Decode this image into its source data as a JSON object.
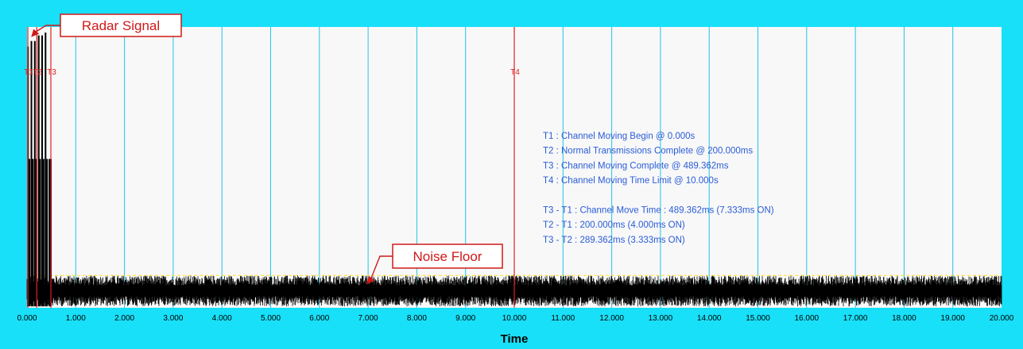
{
  "colors": {
    "frame": "#18e0f8",
    "plot_bg": "#f8f8f8",
    "grid": "#22c4e6",
    "signal": "#000000",
    "marker": "#e02020",
    "threshold": "#ffe020",
    "info": "#2a5cd8",
    "callout": "#d01818"
  },
  "chart_data": {
    "type": "line",
    "xlabel": "Time",
    "xlim": [
      0,
      20
    ],
    "ylim": [
      0,
      1
    ],
    "grid": true,
    "x_ticks": [
      {
        "value": 0,
        "label": "0.000"
      },
      {
        "value": 1,
        "label": "1.000"
      },
      {
        "value": 2,
        "label": "2.000"
      },
      {
        "value": 3,
        "label": "3.000"
      },
      {
        "value": 4,
        "label": "4.000"
      },
      {
        "value": 5,
        "label": "5.000"
      },
      {
        "value": 6,
        "label": "6.000"
      },
      {
        "value": 7,
        "label": "7.000"
      },
      {
        "value": 8,
        "label": "8.000"
      },
      {
        "value": 9,
        "label": "9.000"
      },
      {
        "value": 10,
        "label": "10.000"
      },
      {
        "value": 11,
        "label": "11.000"
      },
      {
        "value": 12,
        "label": "12.000"
      },
      {
        "value": 13,
        "label": "13.000"
      },
      {
        "value": 14,
        "label": "14.000"
      },
      {
        "value": 15,
        "label": "15.000"
      },
      {
        "value": 16,
        "label": "16.000"
      },
      {
        "value": 17,
        "label": "17.000"
      },
      {
        "value": 18,
        "label": "18.000"
      },
      {
        "value": 19,
        "label": "19.000"
      },
      {
        "value": 20,
        "label": "20.000"
      }
    ],
    "noise_floor": {
      "level": 0.06,
      "amplitude": 0.055
    },
    "threshold": 0.115,
    "pulses": [
      {
        "x": 0.02,
        "y": 0.93
      },
      {
        "x": 0.05,
        "y": 0.53
      },
      {
        "x": 0.09,
        "y": 0.95
      },
      {
        "x": 0.12,
        "y": 0.53
      },
      {
        "x": 0.16,
        "y": 0.95
      },
      {
        "x": 0.19,
        "y": 0.53
      },
      {
        "x": 0.24,
        "y": 0.97
      },
      {
        "x": 0.27,
        "y": 0.53
      },
      {
        "x": 0.31,
        "y": 0.97
      },
      {
        "x": 0.34,
        "y": 0.53
      },
      {
        "x": 0.38,
        "y": 0.98
      },
      {
        "x": 0.41,
        "y": 0.53
      },
      {
        "x": 0.46,
        "y": 0.53
      },
      {
        "x": 0.49,
        "y": 0.53
      }
    ],
    "markers": [
      {
        "label": "T1",
        "x": 0.0
      },
      {
        "label": "T2",
        "x": 0.2
      },
      {
        "label": "T3",
        "x": 0.489362
      },
      {
        "label": "T4",
        "x": 10.0
      }
    ],
    "annotations": [
      "T1 : Channel Moving Begin @ 0.000s",
      "T2 : Normal Transmissions Complete @ 200.000ms",
      "T3 : Channel Moving Complete @ 489.362ms",
      "T4 : Channel Moving Time Limit @ 10.000s",
      "",
      "T3 - T1 : Channel Move Time : 489.362ms (7.333ms ON)",
      "T2 - T1 : 200.000ms (4.000ms ON)",
      "T3 - T2 : 289.362ms (3.333ms ON)"
    ],
    "callouts": [
      {
        "text": "Radar Signal",
        "target_x": 0.02,
        "target_y": 0.97
      },
      {
        "text": "Noise Floor",
        "target_x": 6.9,
        "target_y": 0.1
      }
    ]
  }
}
